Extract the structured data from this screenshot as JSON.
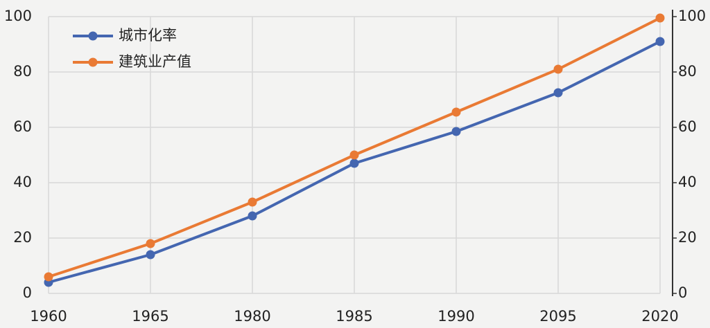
{
  "chart_data": {
    "type": "line",
    "categories": [
      "1960",
      "1965",
      "1980",
      "1985",
      "1990",
      "2095",
      "2020"
    ],
    "series": [
      {
        "name": "城市化率",
        "color": "#4466b0",
        "values": [
          4,
          14,
          28,
          47,
          58.5,
          72.5,
          91
        ]
      },
      {
        "name": "建筑业产值",
        "color": "#e97a34",
        "values": [
          6,
          18,
          33,
          50,
          65.5,
          81,
          99.5
        ]
      }
    ],
    "ylim": [
      0,
      100
    ],
    "yticks": [
      0,
      20,
      40,
      60,
      80,
      100
    ],
    "y2lim": [
      0,
      100
    ],
    "y2ticks": [
      0,
      20,
      40,
      60,
      80,
      100
    ],
    "grid": true,
    "legend": "upper left"
  }
}
